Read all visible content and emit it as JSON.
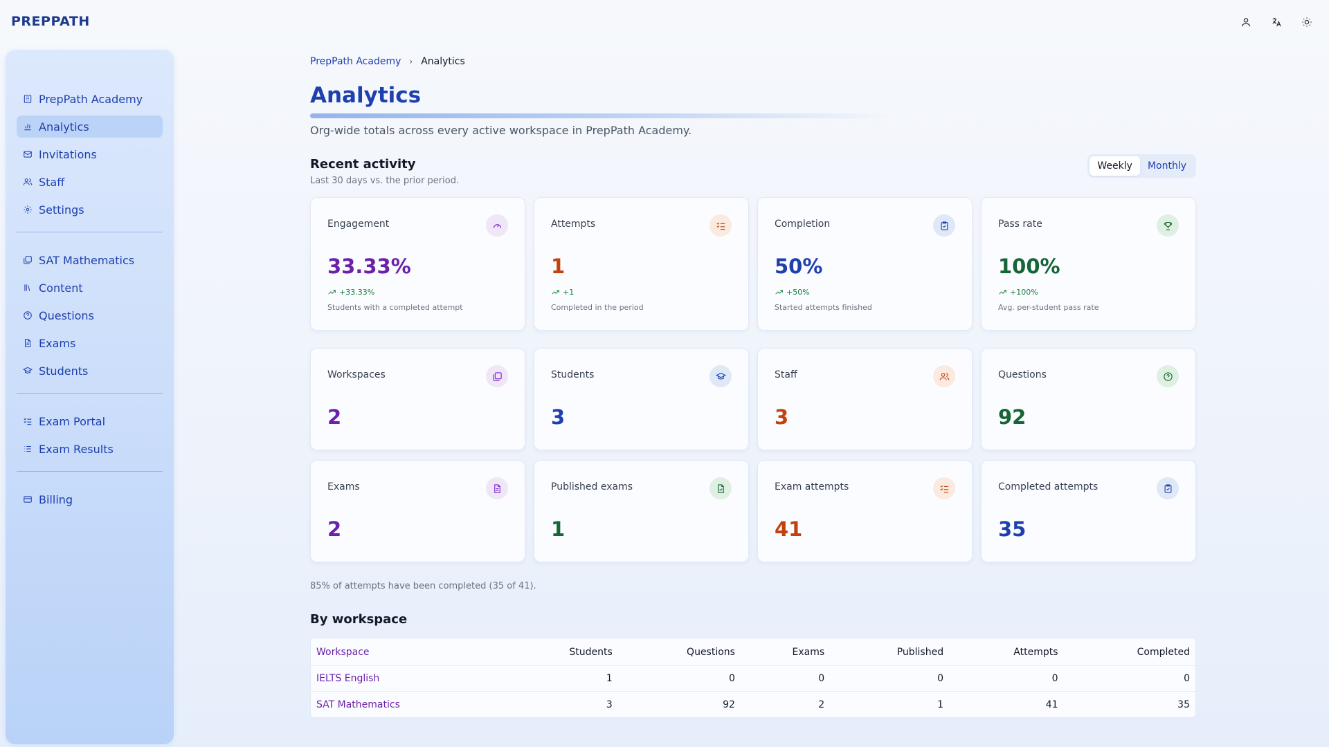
{
  "app": {
    "brand": "PREPPATH"
  },
  "topbar": {
    "icons": [
      "user-icon",
      "translate-icon",
      "sun-icon"
    ]
  },
  "sidebar": {
    "groups": [
      [
        {
          "label": "PrepPath Academy",
          "icon": "building-icon"
        },
        {
          "label": "Analytics",
          "icon": "bar-chart-icon",
          "active": true
        },
        {
          "label": "Invitations",
          "icon": "mail-icon"
        },
        {
          "label": "Staff",
          "icon": "users-icon"
        },
        {
          "label": "Settings",
          "icon": "gear-icon"
        }
      ],
      [
        {
          "label": "SAT Mathematics",
          "icon": "layers-icon"
        },
        {
          "label": "Content",
          "icon": "library-icon"
        },
        {
          "label": "Questions",
          "icon": "help-circle-icon"
        },
        {
          "label": "Exams",
          "icon": "file-text-icon"
        },
        {
          "label": "Students",
          "icon": "graduation-cap-icon"
        }
      ],
      [
        {
          "label": "Exam Portal",
          "icon": "list-checks-icon"
        },
        {
          "label": "Exam Results",
          "icon": "list-icon"
        }
      ],
      [
        {
          "label": "Billing",
          "icon": "credit-card-icon"
        }
      ]
    ]
  },
  "breadcrumb": {
    "parent": "PrepPath Academy",
    "current": "Analytics"
  },
  "page": {
    "title": "Analytics",
    "subtitle": "Org-wide totals across every active workspace in PrepPath Academy."
  },
  "recent": {
    "title": "Recent activity",
    "subtitle": "Last 30 days vs. the prior period.",
    "toggle": {
      "options": [
        "Weekly",
        "Monthly"
      ],
      "selected": "Weekly"
    },
    "cards": [
      {
        "label": "Engagement",
        "value": "33.33%",
        "trend": "+33.33%",
        "desc": "Students with a completed attempt",
        "icon": "gauge-icon",
        "color": "purple"
      },
      {
        "label": "Attempts",
        "value": "1",
        "trend": "+1",
        "desc": "Completed in the period",
        "icon": "list-checks-icon",
        "color": "orange"
      },
      {
        "label": "Completion",
        "value": "50%",
        "trend": "+50%",
        "desc": "Started attempts finished",
        "icon": "clipboard-check-icon",
        "color": "blue"
      },
      {
        "label": "Pass rate",
        "value": "100%",
        "trend": "+100%",
        "desc": "Avg. per-student pass rate",
        "icon": "trophy-icon",
        "color": "green"
      }
    ]
  },
  "totals": [
    {
      "label": "Workspaces",
      "value": "2",
      "icon": "layers-icon",
      "color": "purple"
    },
    {
      "label": "Students",
      "value": "3",
      "icon": "graduation-cap-icon",
      "color": "blue"
    },
    {
      "label": "Staff",
      "value": "3",
      "icon": "users-icon",
      "color": "orange"
    },
    {
      "label": "Questions",
      "value": "92",
      "icon": "help-circle-icon",
      "color": "green"
    },
    {
      "label": "Exams",
      "value": "2",
      "icon": "file-text-icon",
      "color": "purple"
    },
    {
      "label": "Published exams",
      "value": "1",
      "icon": "file-check-icon",
      "color": "green"
    },
    {
      "label": "Exam attempts",
      "value": "41",
      "icon": "list-checks-icon",
      "color": "orange"
    },
    {
      "label": "Completed attempts",
      "value": "35",
      "icon": "clipboard-check-icon",
      "color": "blue"
    }
  ],
  "completion_note": "85% of attempts have been completed (35 of 41).",
  "by_workspace": {
    "title": "By workspace",
    "columns": [
      "Workspace",
      "Students",
      "Questions",
      "Exams",
      "Published",
      "Attempts",
      "Completed"
    ],
    "rows": [
      [
        "IELTS English",
        "1",
        "0",
        "0",
        "0",
        "0",
        "0"
      ],
      [
        "SAT Mathematics",
        "3",
        "92",
        "2",
        "1",
        "41",
        "35"
      ]
    ]
  },
  "colors": {
    "accent": "#1e40af",
    "purple": "#6b21a8",
    "orange": "#c2410c",
    "blue": "#1e40af",
    "green": "#166534"
  }
}
